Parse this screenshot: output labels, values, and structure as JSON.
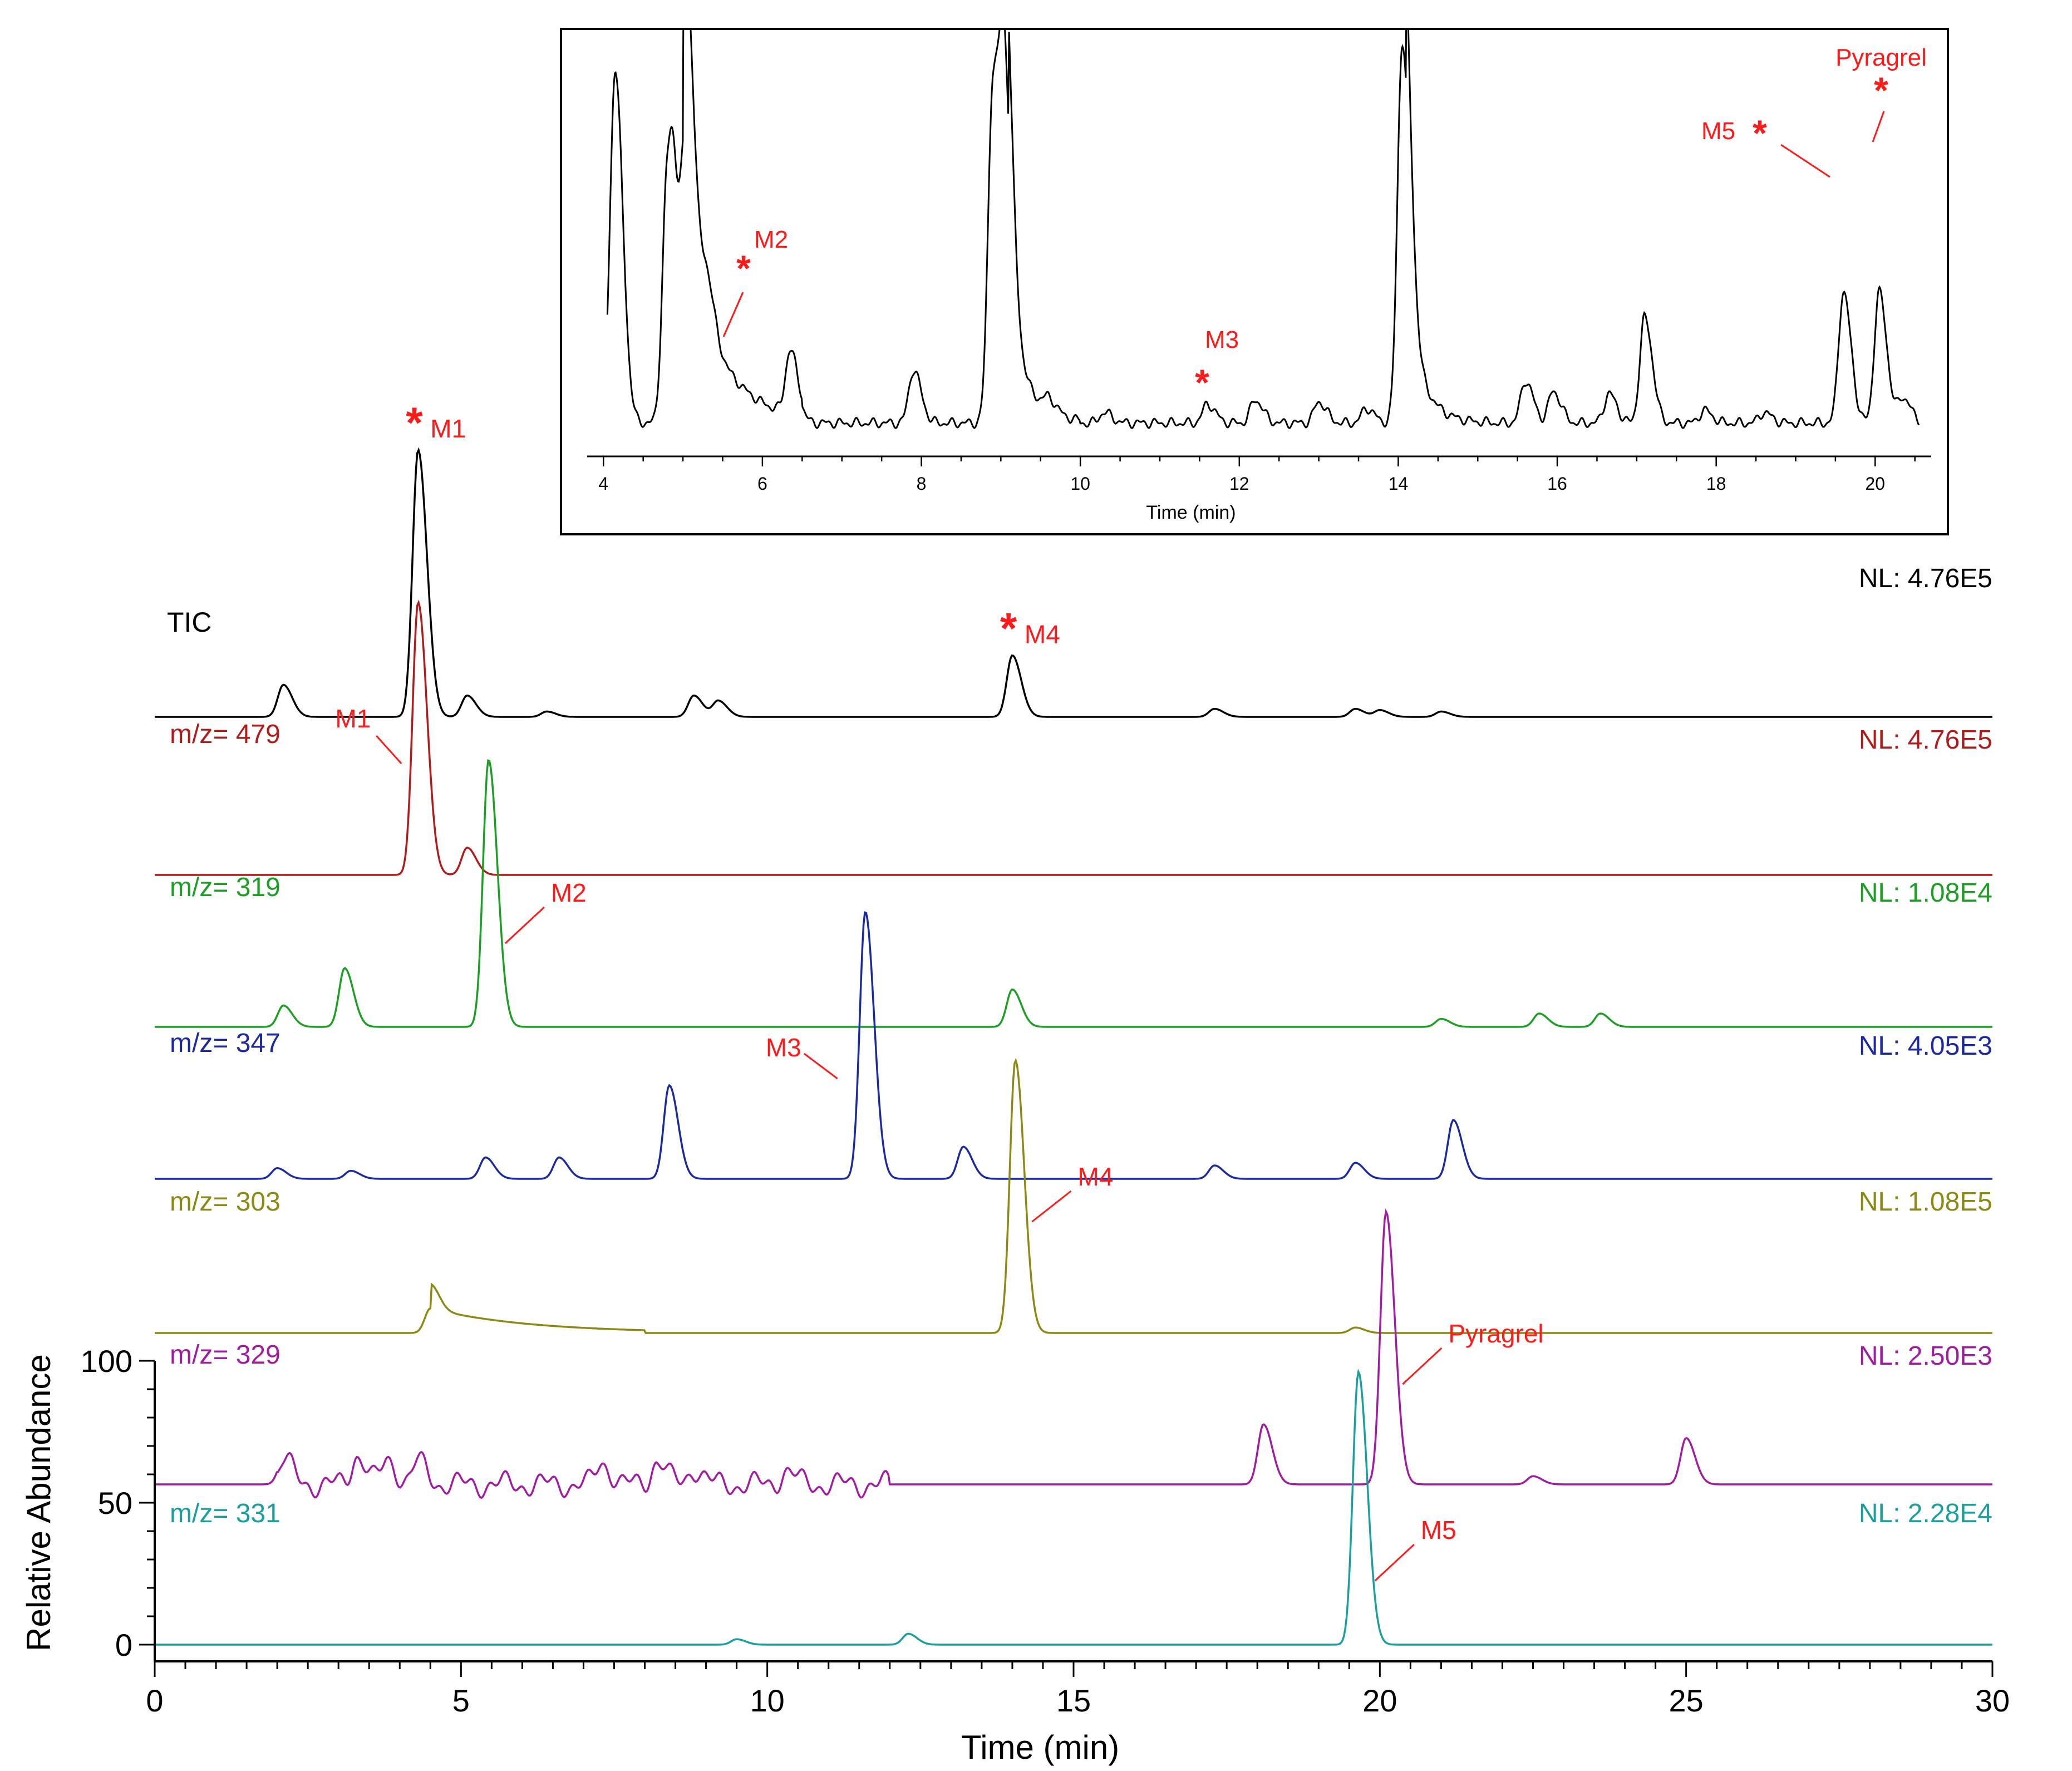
{
  "chart_data": [
    {
      "type": "line",
      "title": "",
      "xlabel": "Time (min)",
      "ylabel": "Relative Abundance",
      "xlim": [
        0,
        30
      ],
      "ylim": [
        0,
        100
      ],
      "x_ticks": [
        "0",
        "5",
        "10",
        "15",
        "20",
        "25",
        "30"
      ],
      "y_ticks": [
        "0",
        "50",
        "100"
      ],
      "traces": [
        {
          "label": "TIC",
          "nl": "NL: 4.76E5",
          "color": "#000000",
          "peaks": [
            [
              2.1,
              0.12
            ],
            [
              4.3,
              1.0
            ],
            [
              5.1,
              0.08
            ],
            [
              6.4,
              0.02
            ],
            [
              8.8,
              0.08
            ],
            [
              9.2,
              0.06
            ],
            [
              14.0,
              0.23
            ],
            [
              17.3,
              0.03
            ],
            [
              19.6,
              0.03
            ],
            [
              20.0,
              0.025
            ],
            [
              21.0,
              0.02
            ]
          ],
          "annotations": [
            {
              "text": "M1",
              "x": 4.3,
              "star": true
            },
            {
              "text": "M4",
              "x": 14.0,
              "star": true
            }
          ]
        },
        {
          "label": "m/z= 479",
          "nl": "NL: 4.76E5",
          "color": "#b01c1c",
          "peaks": [
            [
              4.3,
              1.0
            ],
            [
              5.1,
              0.1
            ]
          ],
          "annotations": [
            {
              "text": "M1",
              "x": 4.3
            }
          ]
        },
        {
          "label": "m/z= 319",
          "nl": "NL: 1.08E4",
          "color": "#1d9e24",
          "peaks": [
            [
              2.1,
              0.08
            ],
            [
              3.1,
              0.22
            ],
            [
              5.45,
              1.0
            ],
            [
              14.0,
              0.14
            ],
            [
              21.0,
              0.03
            ],
            [
              22.6,
              0.05
            ],
            [
              23.6,
              0.05
            ]
          ],
          "annotations": [
            {
              "text": "M2",
              "x": 5.45
            }
          ]
        },
        {
          "label": "m/z= 347",
          "nl": "NL: 4.05E3",
          "color": "#1b2aa0",
          "peaks": [
            [
              2.0,
              0.04
            ],
            [
              3.2,
              0.03
            ],
            [
              5.4,
              0.08
            ],
            [
              6.6,
              0.08
            ],
            [
              8.4,
              0.35
            ],
            [
              11.6,
              1.0
            ],
            [
              13.2,
              0.12
            ],
            [
              17.3,
              0.05
            ],
            [
              19.6,
              0.06
            ],
            [
              21.2,
              0.22
            ]
          ],
          "annotations": [
            {
              "text": "M3",
              "x": 11.6
            }
          ]
        },
        {
          "label": "m/z= 303",
          "nl": "NL: 1.08E5",
          "color": "#8a8a14",
          "peaks": [
            [
              4.5,
              0.09
            ],
            [
              14.05,
              1.0
            ],
            [
              19.6,
              0.02
            ]
          ],
          "annotations": [
            {
              "text": "M4",
              "x": 14.05
            }
          ]
        },
        {
          "label": "m/z= 329",
          "nl": "NL: 2.50E3",
          "color": "#a01ca0",
          "peaks": [
            [
              2.1,
              0.09
            ],
            [
              3.3,
              0.11
            ],
            [
              3.8,
              0.09
            ],
            [
              4.3,
              0.08
            ],
            [
              7.3,
              0.08
            ],
            [
              8.2,
              0.09
            ],
            [
              8.8,
              0.06
            ],
            [
              10.3,
              0.05
            ],
            [
              18.1,
              0.22
            ],
            [
              20.1,
              1.0
            ],
            [
              22.5,
              0.03
            ],
            [
              25.0,
              0.17
            ]
          ],
          "annotations": [
            {
              "text": "Pyragrel",
              "x": 20.1
            }
          ]
        },
        {
          "label": "m/z= 331",
          "nl": "NL: 2.28E4",
          "color": "#1b9e9e",
          "peaks": [
            [
              9.5,
              0.02
            ],
            [
              12.3,
              0.04
            ],
            [
              19.65,
              1.0
            ]
          ],
          "annotations": [
            {
              "text": "M5",
              "x": 19.65
            }
          ]
        }
      ]
    },
    {
      "type": "line",
      "title": "",
      "xlabel": "Time (min)",
      "xlim": [
        3.9,
        20.6
      ],
      "x_ticks": [
        "4",
        "6",
        "8",
        "10",
        "12",
        "14",
        "16",
        "18",
        "20"
      ],
      "series": [
        {
          "color": "#000000",
          "peaks": [
            [
              4.1,
              0.2
            ],
            [
              4.15,
              1.5
            ],
            [
              4.8,
              1.1
            ],
            [
              4.9,
              0.6
            ],
            [
              5.05,
              1.2
            ],
            [
              5.3,
              0.25
            ],
            [
              6.35,
              0.3
            ],
            [
              7.9,
              0.25
            ],
            [
              8.9,
              1.6
            ],
            [
              9.05,
              1.4
            ],
            [
              9.6,
              0.06
            ],
            [
              10.3,
              0.05
            ],
            [
              11.6,
              0.09
            ],
            [
              12.2,
              0.11
            ],
            [
              13.0,
              0.1
            ],
            [
              13.6,
              0.07
            ],
            [
              14.05,
              1.8
            ],
            [
              15.6,
              0.2
            ],
            [
              15.95,
              0.15
            ],
            [
              16.65,
              0.14
            ],
            [
              17.1,
              0.5
            ],
            [
              17.85,
              0.06
            ],
            [
              18.6,
              0.05
            ],
            [
              19.6,
              0.62
            ],
            [
              20.05,
              0.62
            ],
            [
              20.35,
              0.12
            ]
          ],
          "annotations": [
            {
              "text": "M2",
              "x": 5.6,
              "star": true
            },
            {
              "text": "M3",
              "x": 11.6,
              "star": true
            },
            {
              "text": "M5",
              "x": 19.6,
              "star": true
            },
            {
              "text": "Pyragrel",
              "x": 20.05,
              "star": true
            }
          ]
        }
      ]
    }
  ]
}
